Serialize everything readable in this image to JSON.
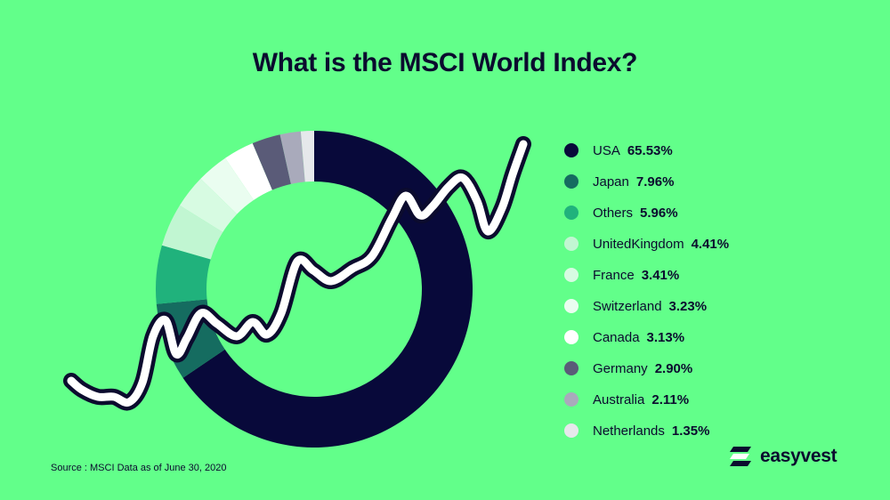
{
  "colors": {
    "background": "#62FF8A",
    "text": "#0B0B2E",
    "line_stroke": "#0B0B2E",
    "line_fill": "#FFFFFF"
  },
  "header": {
    "title": "What is the MSCI World Index?"
  },
  "footer": {
    "source": "Source : MSCI Data as of June 30, 2020"
  },
  "brand": {
    "name": "easyvest",
    "icon": "easyvest-logo-icon"
  },
  "chart_data": {
    "type": "pie",
    "donut": true,
    "title": "What is the MSCI World Index?",
    "legend_position": "right",
    "unit": "%",
    "slices": [
      {
        "label": "USA",
        "value": 65.53,
        "display": "65.53%",
        "color": "#08093A"
      },
      {
        "label": "Japan",
        "value": 7.96,
        "display": "7.96%",
        "color": "#156C60"
      },
      {
        "label": "Others",
        "value": 5.96,
        "display": "5.96%",
        "color": "#20B27C"
      },
      {
        "label": "UnitedKingdom",
        "value": 4.41,
        "display": "4.41%",
        "color": "#C1F6D2"
      },
      {
        "label": "France",
        "value": 3.41,
        "display": "3.41%",
        "color": "#D7FBE2"
      },
      {
        "label": "Switzerland",
        "value": 3.23,
        "display": "3.23%",
        "color": "#EAFDF0"
      },
      {
        "label": "Canada",
        "value": 3.13,
        "display": "3.13%",
        "color": "#FFFFFF"
      },
      {
        "label": "Germany",
        "value": 2.9,
        "display": "2.90%",
        "color": "#5A5B78"
      },
      {
        "label": "Australia",
        "value": 2.11,
        "display": "2.11%",
        "color": "#A9AABB"
      },
      {
        "label": "Netherlands",
        "value": 1.35,
        "display": "1.35%",
        "color": "#E6E8EB"
      }
    ]
  }
}
